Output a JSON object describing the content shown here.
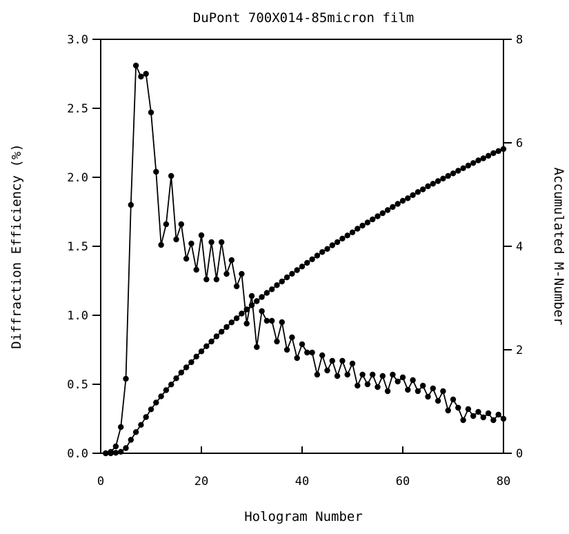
{
  "chart_data": {
    "type": "line",
    "title": "DuPont 700X014-85micron film",
    "xlabel": "Hologram Number",
    "ylabel": "Diffraction Efficiency (%)",
    "y2label": "Accumulated M-Number",
    "xlim": [
      0,
      80
    ],
    "ylim": [
      0,
      3.0
    ],
    "y2lim": [
      0,
      8
    ],
    "x_ticks": [
      "0",
      "20",
      "40",
      "60",
      "80"
    ],
    "y_ticks": [
      "0.0",
      "0.5",
      "1.0",
      "1.5",
      "2.0",
      "2.5",
      "3.0"
    ],
    "y2_ticks": [
      "0",
      "2",
      "4",
      "6",
      "8"
    ],
    "grid": false,
    "series": [
      {
        "axis": "left",
        "x": [
          1,
          2,
          3,
          4,
          5,
          6,
          7,
          8,
          9,
          10,
          11,
          12,
          13,
          14,
          15,
          16,
          17,
          18,
          19,
          20,
          21,
          22,
          23,
          24,
          25,
          26,
          27,
          28,
          29,
          30,
          31,
          32,
          33,
          34,
          35,
          36,
          37,
          38,
          39,
          40,
          41,
          42,
          43,
          44,
          45,
          46,
          47,
          48,
          49,
          50,
          51,
          52,
          53,
          54,
          55,
          56,
          57,
          58,
          59,
          60,
          61,
          62,
          63,
          64,
          65,
          66,
          67,
          68,
          69,
          70,
          71,
          72,
          73,
          74,
          75,
          76,
          77,
          78,
          79,
          80
        ],
        "values": [
          0.0,
          0.01,
          0.05,
          0.19,
          0.54,
          1.8,
          2.81,
          2.73,
          2.75,
          2.47,
          2.04,
          1.51,
          1.66,
          2.01,
          1.55,
          1.66,
          1.41,
          1.52,
          1.33,
          1.58,
          1.26,
          1.53,
          1.26,
          1.53,
          1.3,
          1.4,
          1.21,
          1.3,
          0.94,
          1.14,
          0.77,
          1.03,
          0.96,
          0.96,
          0.81,
          0.95,
          0.75,
          0.84,
          0.69,
          0.79,
          0.73,
          0.73,
          0.57,
          0.71,
          0.6,
          0.67,
          0.56,
          0.67,
          0.57,
          0.65,
          0.49,
          0.57,
          0.5,
          0.57,
          0.48,
          0.56,
          0.45,
          0.57,
          0.52,
          0.55,
          0.46,
          0.53,
          0.45,
          0.49,
          0.41,
          0.47,
          0.38,
          0.45,
          0.31,
          0.39,
          0.33,
          0.24,
          0.32,
          0.27,
          0.3,
          0.26,
          0.29,
          0.24,
          0.28,
          0.25
        ]
      },
      {
        "axis": "right",
        "x": [
          1,
          2,
          3,
          4,
          5,
          6,
          7,
          8,
          9,
          10,
          11,
          12,
          13,
          14,
          15,
          16,
          17,
          18,
          19,
          20,
          21,
          22,
          23,
          24,
          25,
          26,
          27,
          28,
          29,
          30,
          31,
          32,
          33,
          34,
          35,
          36,
          37,
          38,
          39,
          40,
          41,
          42,
          43,
          44,
          45,
          46,
          47,
          48,
          49,
          50,
          51,
          52,
          53,
          54,
          55,
          56,
          57,
          58,
          59,
          60,
          61,
          62,
          63,
          64,
          65,
          66,
          67,
          68,
          69,
          70,
          71,
          72,
          73,
          74,
          75,
          76,
          77,
          78,
          79,
          80
        ],
        "values": [
          0.0,
          0.0,
          0.01,
          0.03,
          0.1,
          0.26,
          0.41,
          0.55,
          0.7,
          0.85,
          0.98,
          1.1,
          1.22,
          1.33,
          1.45,
          1.56,
          1.66,
          1.76,
          1.87,
          1.97,
          2.07,
          2.16,
          2.26,
          2.35,
          2.44,
          2.53,
          2.61,
          2.7,
          2.78,
          2.86,
          2.94,
          3.02,
          3.1,
          3.17,
          3.25,
          3.32,
          3.4,
          3.47,
          3.54,
          3.61,
          3.68,
          3.75,
          3.82,
          3.89,
          3.95,
          4.02,
          4.08,
          4.15,
          4.21,
          4.27,
          4.34,
          4.4,
          4.46,
          4.52,
          4.58,
          4.64,
          4.7,
          4.76,
          4.82,
          4.88,
          4.93,
          4.99,
          5.05,
          5.1,
          5.16,
          5.21,
          5.26,
          5.31,
          5.36,
          5.41,
          5.46,
          5.51,
          5.56,
          5.61,
          5.66,
          5.7,
          5.75,
          5.8,
          5.84,
          5.88
        ]
      }
    ]
  }
}
